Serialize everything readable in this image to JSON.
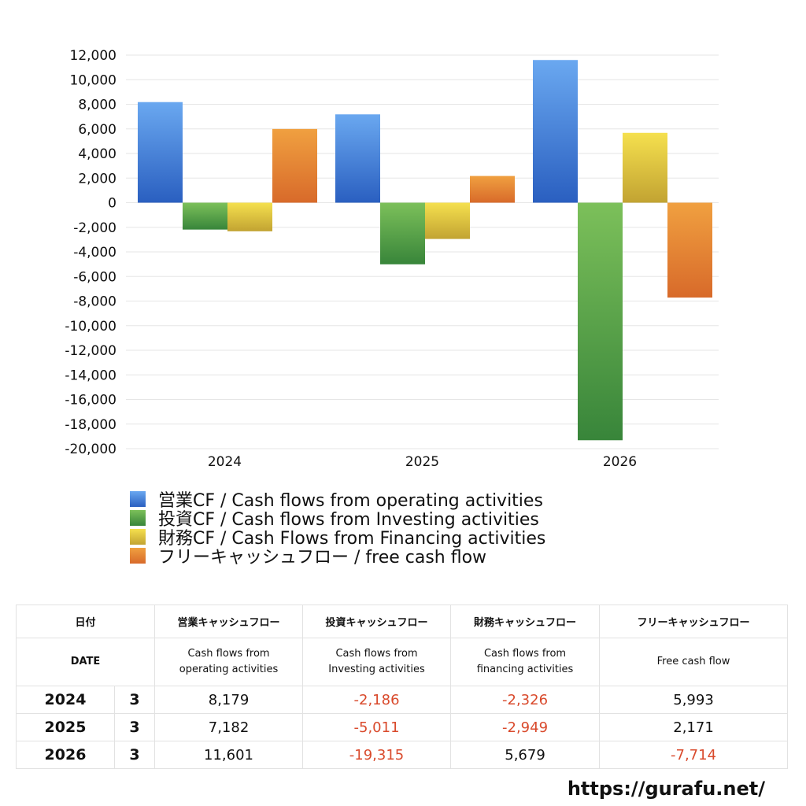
{
  "chart_data": {
    "type": "bar",
    "categories": [
      "2024",
      "2025",
      "2026"
    ],
    "ylim": [
      -20000,
      12000
    ],
    "yticks": [
      12000,
      10000,
      8000,
      6000,
      4000,
      2000,
      0,
      -2000,
      -4000,
      -6000,
      -8000,
      -10000,
      -12000,
      -14000,
      -16000,
      -18000,
      -20000
    ],
    "ytick_labels": [
      "12,000",
      "10,000",
      "8,000",
      "6,000",
      "4,000",
      "2,000",
      "0",
      "-2,000",
      "-4,000",
      "-6,000",
      "-8,000",
      "-10,000",
      "-12,000",
      "-14,000",
      "-16,000",
      "-18,000",
      "-20,000"
    ],
    "grid": true,
    "legend_position": "bottom",
    "series": [
      {
        "name": "営業CF / Cash flows from operating activities",
        "values": [
          8179,
          7182,
          11601
        ],
        "color_top": "#6aa8f0",
        "color_bottom": "#2a5fc0"
      },
      {
        "name": "投資CF / Cash flows from Investing activities",
        "values": [
          -2186,
          -5011,
          -19315
        ],
        "color_top": "#7cc05a",
        "color_bottom": "#38853a"
      },
      {
        "name": "財務CF / Cash Flows from Financing activities",
        "values": [
          -2326,
          -2949,
          5679
        ],
        "color_top": "#f5e04e",
        "color_bottom": "#c2a332"
      },
      {
        "name": "フリーキャッシュフロー / free cash flow",
        "values": [
          5993,
          2171,
          -7714
        ],
        "color_top": "#f0a040",
        "color_bottom": "#d86a2a"
      }
    ]
  },
  "table": {
    "headers_jp": [
      "日付",
      "営業キャッシュフロー",
      "投資キャッシュフロー",
      "財務キャッシュフロー",
      "フリーキャッシュフロー"
    ],
    "headers_en": {
      "date": "DATE",
      "operating": [
        "Cash flows from",
        "operating activities"
      ],
      "investing": [
        "Cash flows from",
        "Investing activities"
      ],
      "financing": [
        "Cash flows from",
        "financing activities"
      ],
      "free": "Free cash flow"
    },
    "rows": [
      {
        "year": "2024",
        "month": "3",
        "values": [
          "8,179",
          "-2,186",
          "-2,326",
          "5,993"
        ]
      },
      {
        "year": "2025",
        "month": "3",
        "values": [
          "7,182",
          "-5,011",
          "-2,949",
          "2,171"
        ]
      },
      {
        "year": "2026",
        "month": "3",
        "values": [
          "11,601",
          "-19,315",
          "5,679",
          "-7,714"
        ]
      }
    ]
  },
  "negative_color": "#d94a2c",
  "footer": {
    "url": "https://gurafu.net/"
  }
}
